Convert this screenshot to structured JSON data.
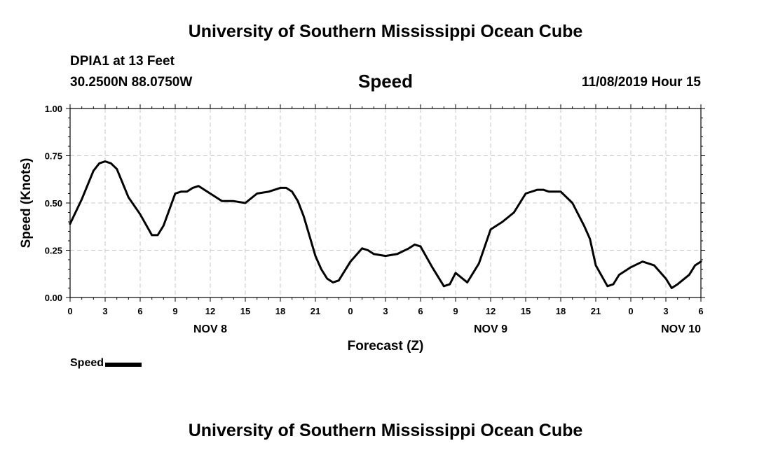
{
  "header": {
    "title_top": "University of Southern Mississippi Ocean Cube",
    "station": "DPIA1 at 13 Feet",
    "coords": "30.2500N 88.0750W",
    "run_time": "11/08/2019 Hour 15",
    "title_bottom": "University of Southern Mississippi Ocean Cube"
  },
  "chart_data": {
    "type": "line",
    "title": "Speed",
    "xlabel": "Forecast (Z)",
    "ylabel": "Speed (Knots)",
    "ylim": [
      0,
      1
    ],
    "y_ticks": [
      "0.00",
      "0.25",
      "0.50",
      "0.75",
      "1.00"
    ],
    "x_ticks": [
      "0",
      "3",
      "6",
      "9",
      "12",
      "15",
      "18",
      "21",
      "0",
      "3",
      "6",
      "9",
      "12",
      "15",
      "18",
      "21",
      "0",
      "3",
      "6"
    ],
    "date_labels": [
      {
        "label": "NOV 8",
        "tick_index": 4
      },
      {
        "label": "NOV 9",
        "tick_index": 12
      },
      {
        "label": "NOV 10",
        "tick_index": 18
      }
    ],
    "grid": true,
    "legend": "bottom-left",
    "series": [
      {
        "name": "Speed",
        "color": "#000000",
        "x": [
          0,
          1,
          2,
          2.5,
          3,
          3.5,
          4,
          5,
          6,
          7,
          7.5,
          8,
          9,
          9.5,
          10,
          10.5,
          11,
          12,
          13,
          14,
          15,
          16,
          17,
          18,
          18.5,
          19,
          19.5,
          20,
          21,
          21.5,
          22,
          22.5,
          23,
          24,
          25,
          25.5,
          26,
          27,
          28,
          29,
          29.5,
          30,
          31,
          32,
          32.5,
          33,
          34,
          35,
          36,
          37,
          38,
          39,
          40,
          40.5,
          41,
          42,
          43,
          44,
          44.5,
          45,
          46,
          46.5,
          47,
          48,
          49,
          50,
          51,
          51.5,
          52,
          53,
          53.5,
          54
        ],
        "values": [
          0.39,
          0.52,
          0.67,
          0.71,
          0.72,
          0.71,
          0.68,
          0.53,
          0.44,
          0.33,
          0.33,
          0.38,
          0.55,
          0.56,
          0.56,
          0.58,
          0.59,
          0.55,
          0.51,
          0.51,
          0.5,
          0.55,
          0.56,
          0.58,
          0.58,
          0.56,
          0.51,
          0.43,
          0.22,
          0.15,
          0.1,
          0.08,
          0.09,
          0.19,
          0.26,
          0.25,
          0.23,
          0.22,
          0.23,
          0.26,
          0.28,
          0.27,
          0.16,
          0.06,
          0.07,
          0.13,
          0.08,
          0.18,
          0.36,
          0.4,
          0.45,
          0.55,
          0.57,
          0.57,
          0.56,
          0.56,
          0.5,
          0.38,
          0.31,
          0.17,
          0.06,
          0.07,
          0.12,
          0.16,
          0.19,
          0.17,
          0.1,
          0.05,
          0.07,
          0.12,
          0.17,
          0.19
        ]
      }
    ]
  }
}
